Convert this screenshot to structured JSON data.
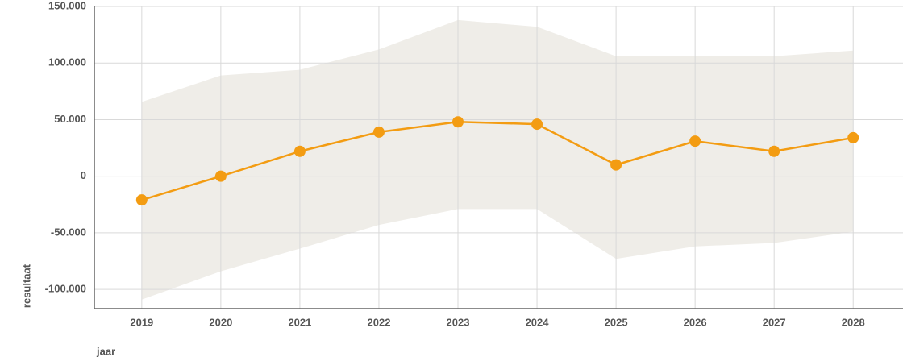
{
  "chart_data": {
    "type": "line",
    "x_label": "jaar",
    "y_label": "resultaat",
    "x": [
      2019,
      2020,
      2021,
      2022,
      2023,
      2024,
      2025,
      2026,
      2027,
      2028
    ],
    "xticks": [
      2019,
      2020,
      2021,
      2022,
      2023,
      2024,
      2025,
      2026,
      2027,
      2028
    ],
    "xlim": [
      2018.4,
      2028.63
    ],
    "ylim": [
      -117000,
      150000
    ],
    "yticks": [
      {
        "value": -100000,
        "label": "-100.000"
      },
      {
        "value": -50000,
        "label": "-50.000"
      },
      0,
      {
        "value": 50000,
        "label": "50.000"
      },
      {
        "value": 100000,
        "label": "100.000"
      },
      {
        "value": 150000,
        "label": "150.000"
      }
    ],
    "grid": true,
    "series": [
      {
        "color": "#f39c12",
        "values": [
          -21000,
          0,
          22000,
          39000,
          48000,
          46000,
          10000,
          31000,
          22000,
          34000
        ]
      }
    ],
    "band": {
      "color": "#efede8",
      "upper": [
        65700,
        89000,
        94000,
        112000,
        138000,
        132000,
        106000,
        106000,
        106000,
        111000
      ],
      "lower": [
        -109000,
        -84000,
        -64000,
        -43000,
        -29000,
        -29000,
        -73000,
        -62000,
        -59000,
        -49000
      ]
    }
  }
}
